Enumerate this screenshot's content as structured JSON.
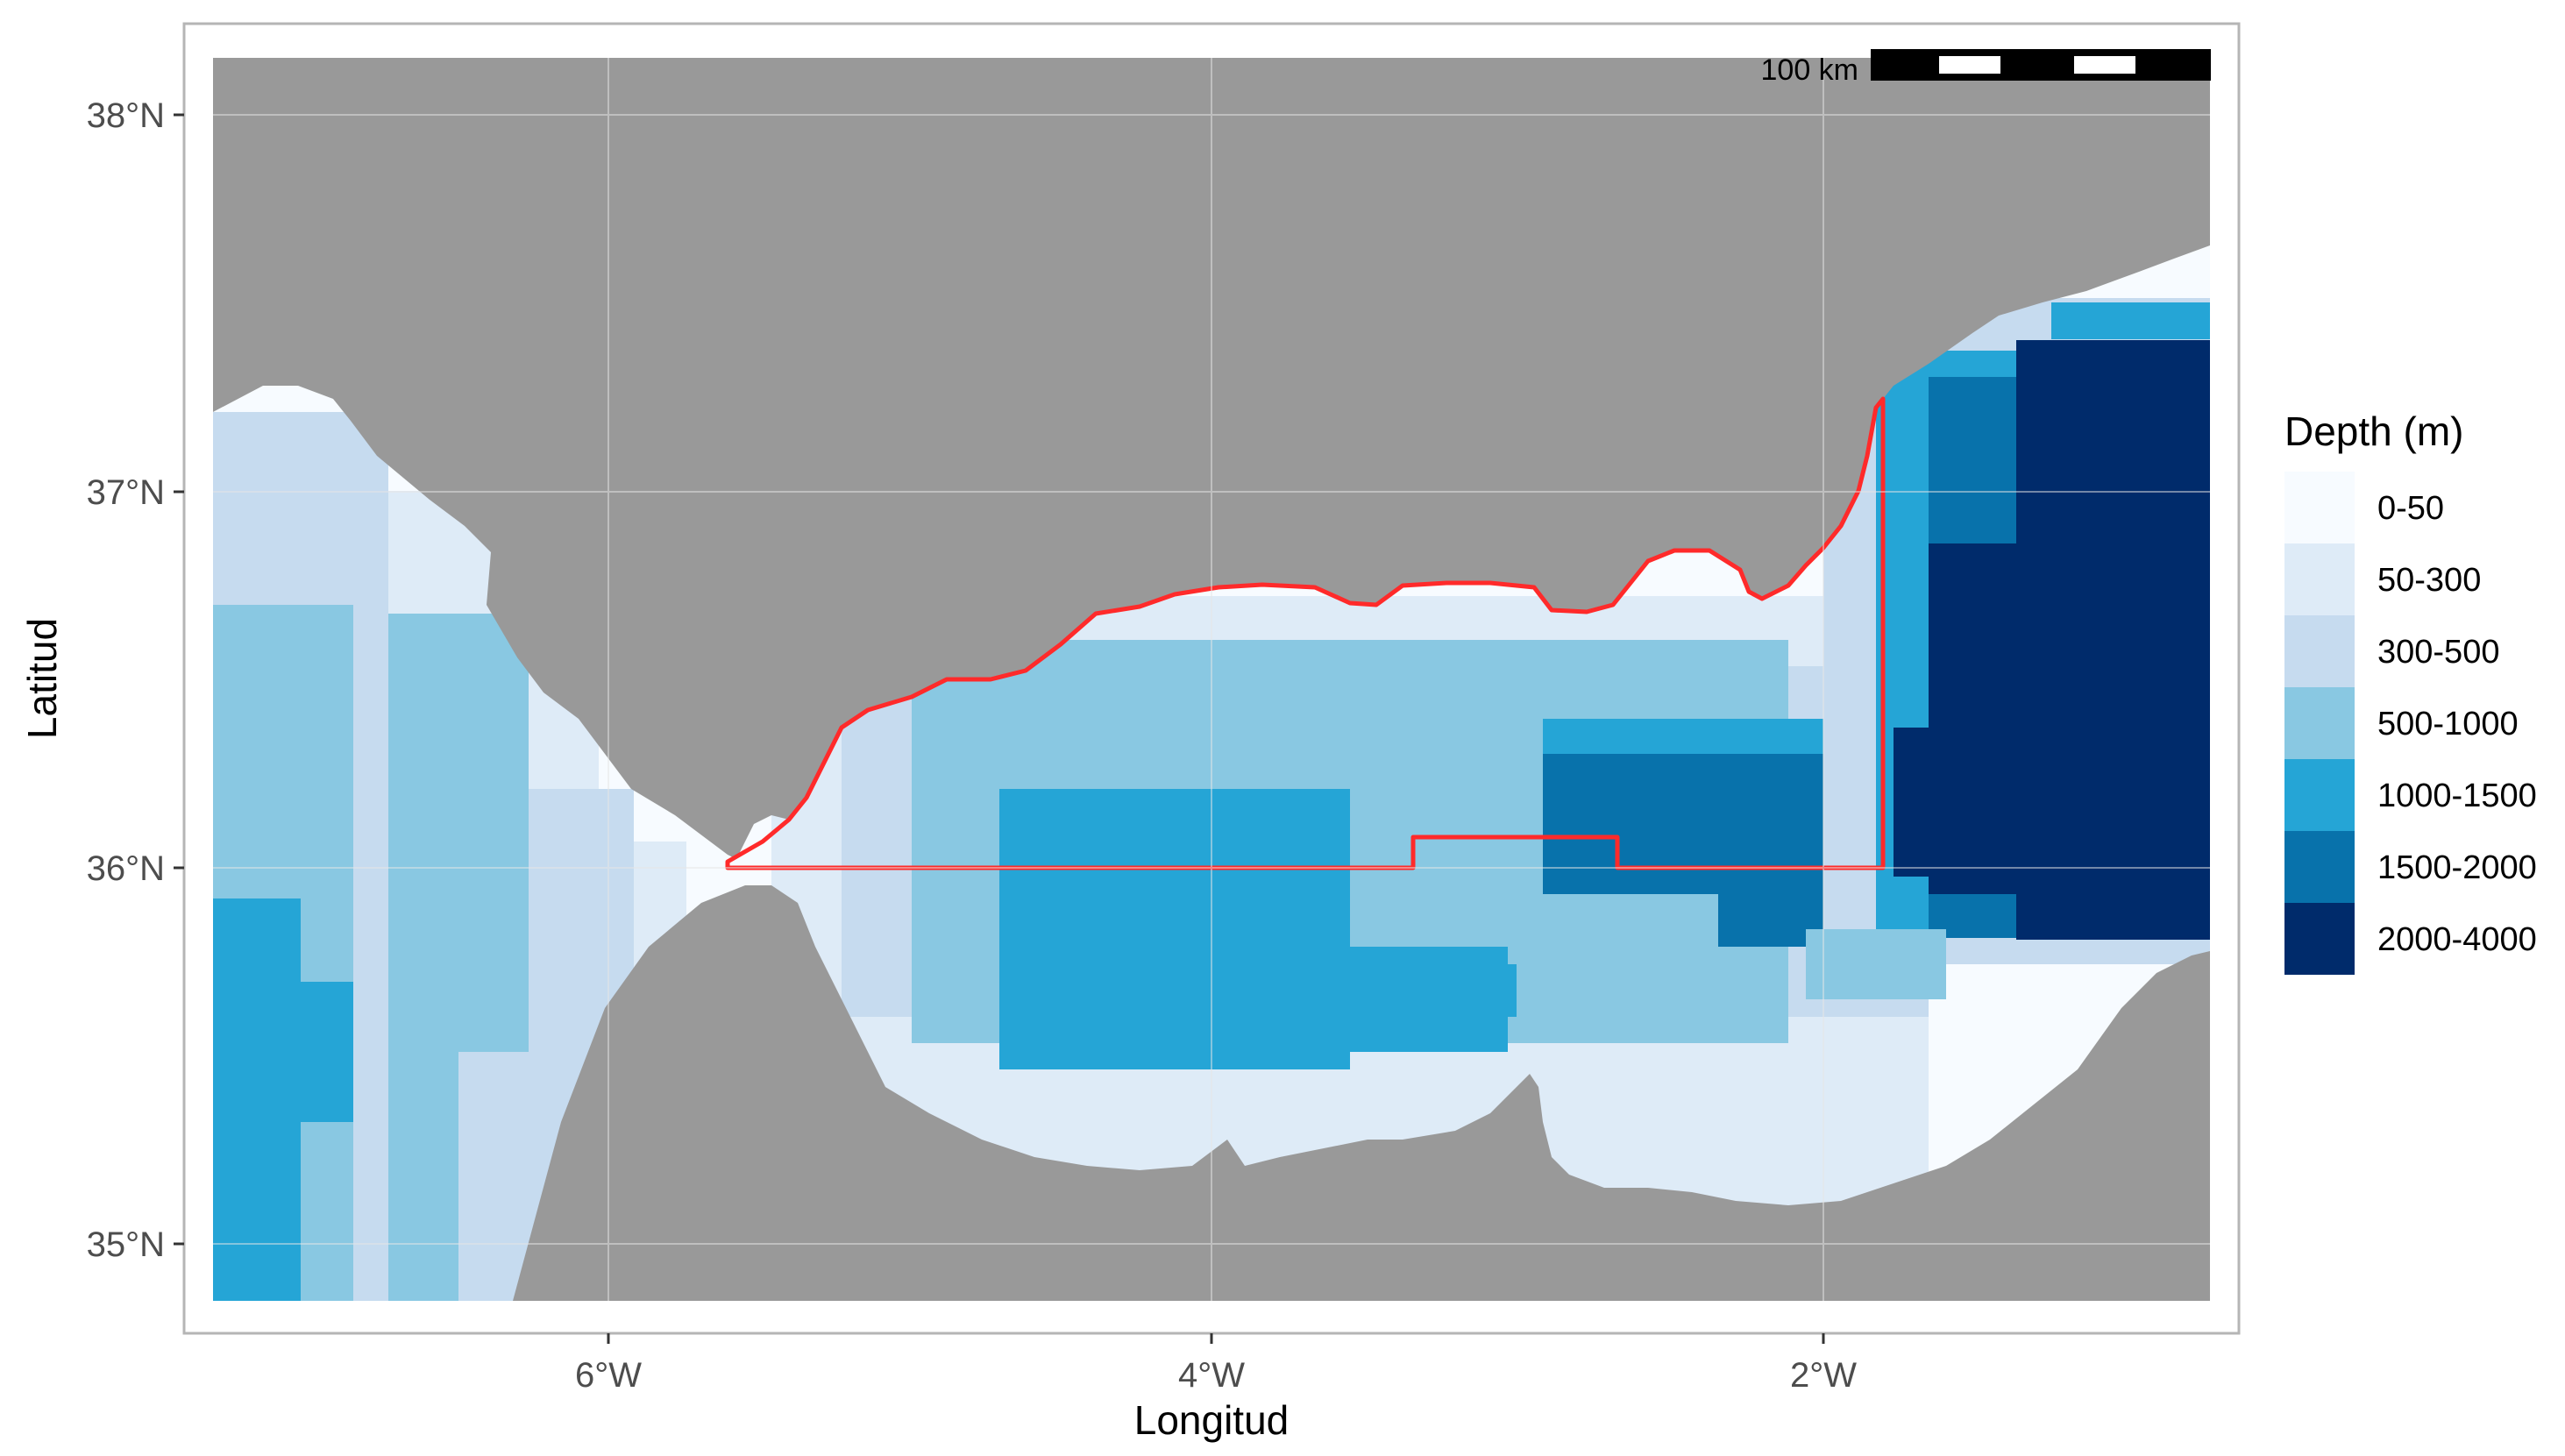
{
  "map": {
    "x_axis_title": "Longitud",
    "y_axis_title": "Latitud",
    "x_ticks": [
      {
        "lon": -6,
        "label": "6°W"
      },
      {
        "lon": -4,
        "label": "4°W"
      },
      {
        "lon": -2,
        "label": "2°W"
      }
    ],
    "y_ticks": [
      {
        "lat": 38,
        "label": "38°N"
      },
      {
        "lat": 37,
        "label": "37°N"
      },
      {
        "lat": 36,
        "label": "36°N"
      },
      {
        "lat": 35,
        "label": "35°N"
      }
    ],
    "extent": {
      "lon": [
        -7.3,
        -0.55
      ],
      "lat": [
        34.85,
        38.15
      ]
    },
    "land_color": "#999999",
    "boundary_color": "#ff2a2a",
    "scale_bar": {
      "label": "100 km"
    }
  },
  "legend": {
    "title": "Depth (m)",
    "classes": [
      {
        "label": "0-50",
        "color": "#f7fbff"
      },
      {
        "label": "50-300",
        "color": "#deebf7"
      },
      {
        "label": "300-500",
        "color": "#c6dbef"
      },
      {
        "label": "500-1000",
        "color": "#89c8e2"
      },
      {
        "label": "1000-1500",
        "color": "#25a5d6"
      },
      {
        "label": "1500-2000",
        "color": "#0872ab"
      },
      {
        "label": "2000-4000",
        "color": "#002b6b"
      }
    ]
  }
}
